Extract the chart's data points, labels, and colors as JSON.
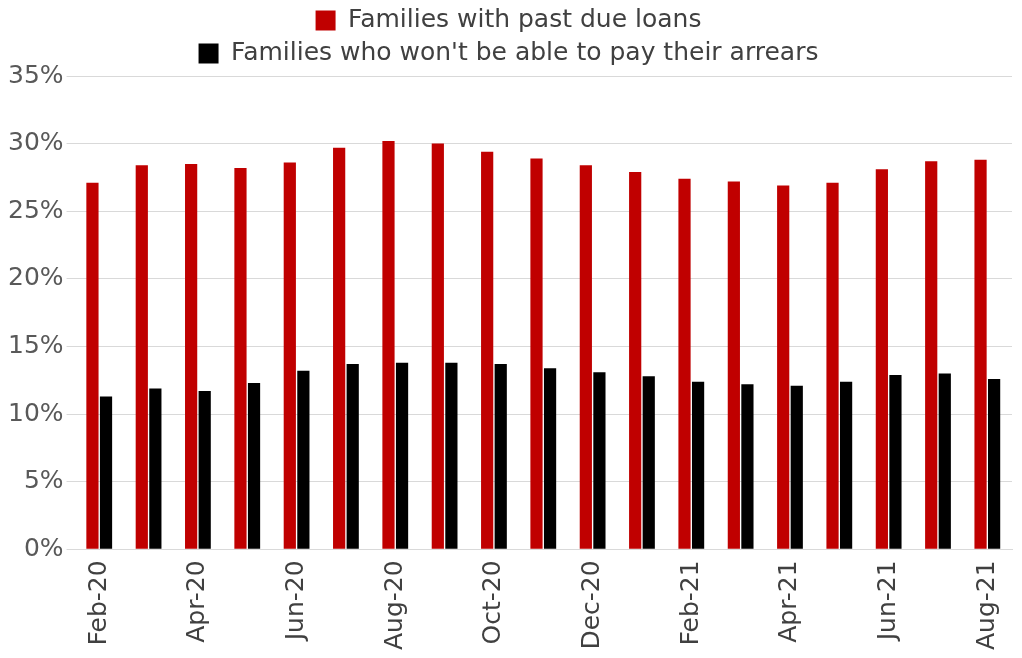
{
  "chart_data": {
    "type": "bar",
    "categories": [
      "Feb-20",
      null,
      "Apr-20",
      null,
      "Jun-20",
      null,
      "Aug-20",
      null,
      "Oct-20",
      null,
      "Dec-20",
      null,
      "Feb-21",
      null,
      "Apr-21",
      null,
      "Jun-21",
      null,
      "Aug-21"
    ],
    "series": [
      {
        "name": "Families with past due loans",
        "color": "#c00000",
        "values": [
          27.1,
          28.4,
          28.5,
          28.2,
          28.6,
          29.7,
          30.2,
          30.0,
          29.4,
          28.9,
          28.4,
          27.9,
          27.4,
          27.2,
          26.9,
          27.1,
          28.1,
          28.7,
          28.8
        ]
      },
      {
        "name": "Families who won't be able to pay their arrears",
        "color": "#000000",
        "values": [
          11.3,
          11.9,
          11.7,
          12.3,
          13.2,
          13.7,
          13.8,
          13.8,
          13.7,
          13.4,
          13.1,
          12.8,
          12.4,
          12.2,
          12.1,
          12.4,
          12.9,
          13.0,
          12.6
        ]
      }
    ],
    "ylim": [
      0,
      35
    ],
    "yticks": [
      {
        "value": 0,
        "label": "0%"
      },
      {
        "value": 5,
        "label": "5%"
      },
      {
        "value": 10,
        "label": "10%"
      },
      {
        "value": 15,
        "label": "15%"
      },
      {
        "value": 20,
        "label": "20%"
      },
      {
        "value": 25,
        "label": "25%"
      },
      {
        "value": 30,
        "label": "30%"
      },
      {
        "value": 35,
        "label": "35%"
      }
    ],
    "grid": "y",
    "legend": "top"
  }
}
